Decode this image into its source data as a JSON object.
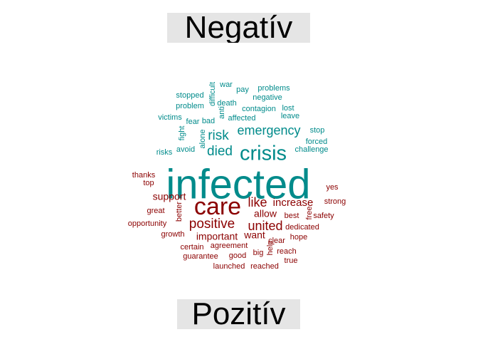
{
  "chart_data": {
    "type": "wordcloud",
    "groups": [
      {
        "name": "Negatív",
        "color": "#008B8B",
        "words": [
          {
            "text": "infected",
            "weight": 10
          },
          {
            "text": "crisis",
            "weight": 5
          },
          {
            "text": "emergency",
            "weight": 3.2
          },
          {
            "text": "risk",
            "weight": 3.2
          },
          {
            "text": "died",
            "weight": 3.2
          },
          {
            "text": "war",
            "weight": 1.2
          },
          {
            "text": "pay",
            "weight": 1.2
          },
          {
            "text": "problems",
            "weight": 1.2
          },
          {
            "text": "stopped",
            "weight": 1.2
          },
          {
            "text": "difficult",
            "weight": 1.2
          },
          {
            "text": "negative",
            "weight": 1.2
          },
          {
            "text": "problem",
            "weight": 1.2
          },
          {
            "text": "death",
            "weight": 1.2
          },
          {
            "text": "contagion",
            "weight": 1.2
          },
          {
            "text": "lost",
            "weight": 1.2
          },
          {
            "text": "anti",
            "weight": 1.2
          },
          {
            "text": "victims",
            "weight": 1.2
          },
          {
            "text": "fear",
            "weight": 1.2
          },
          {
            "text": "bad",
            "weight": 1.2
          },
          {
            "text": "affected",
            "weight": 1.2
          },
          {
            "text": "leave",
            "weight": 1.2
          },
          {
            "text": "stop",
            "weight": 1.2
          },
          {
            "text": "fight",
            "weight": 1.2
          },
          {
            "text": "alone",
            "weight": 1.2
          },
          {
            "text": "forced",
            "weight": 1.2
          },
          {
            "text": "risks",
            "weight": 1.2
          },
          {
            "text": "avoid",
            "weight": 1.2
          },
          {
            "text": "challenge",
            "weight": 1.2
          }
        ]
      },
      {
        "name": "Pozitív",
        "color": "#8B0000",
        "words": [
          {
            "text": "care",
            "weight": 6
          },
          {
            "text": "positive",
            "weight": 3.5
          },
          {
            "text": "united",
            "weight": 3.2
          },
          {
            "text": "like",
            "weight": 3
          },
          {
            "text": "increase",
            "weight": 2.5
          },
          {
            "text": "support",
            "weight": 2.2
          },
          {
            "text": "allow",
            "weight": 2.2
          },
          {
            "text": "important",
            "weight": 2.2
          },
          {
            "text": "want",
            "weight": 2.2
          },
          {
            "text": "thanks",
            "weight": 1.2
          },
          {
            "text": "top",
            "weight": 1.2
          },
          {
            "text": "yes",
            "weight": 1.2
          },
          {
            "text": "strong",
            "weight": 1.2
          },
          {
            "text": "great",
            "weight": 1.2
          },
          {
            "text": "better",
            "weight": 1.2
          },
          {
            "text": "best",
            "weight": 1.2
          },
          {
            "text": "free",
            "weight": 1.2
          },
          {
            "text": "safety",
            "weight": 1.2
          },
          {
            "text": "opportunity",
            "weight": 1.2
          },
          {
            "text": "dedicated",
            "weight": 1.2
          },
          {
            "text": "growth",
            "weight": 1.2
          },
          {
            "text": "clear",
            "weight": 1.2
          },
          {
            "text": "hope",
            "weight": 1.2
          },
          {
            "text": "certain",
            "weight": 1.2
          },
          {
            "text": "agreement",
            "weight": 1.2
          },
          {
            "text": "help",
            "weight": 1.2
          },
          {
            "text": "big",
            "weight": 1.2
          },
          {
            "text": "reach",
            "weight": 1.2
          },
          {
            "text": "guarantee",
            "weight": 1.2
          },
          {
            "text": "good",
            "weight": 1.2
          },
          {
            "text": "true",
            "weight": 1.2
          },
          {
            "text": "launched",
            "weight": 1.2
          },
          {
            "text": "reached",
            "weight": 1.2
          }
        ]
      }
    ]
  }
}
